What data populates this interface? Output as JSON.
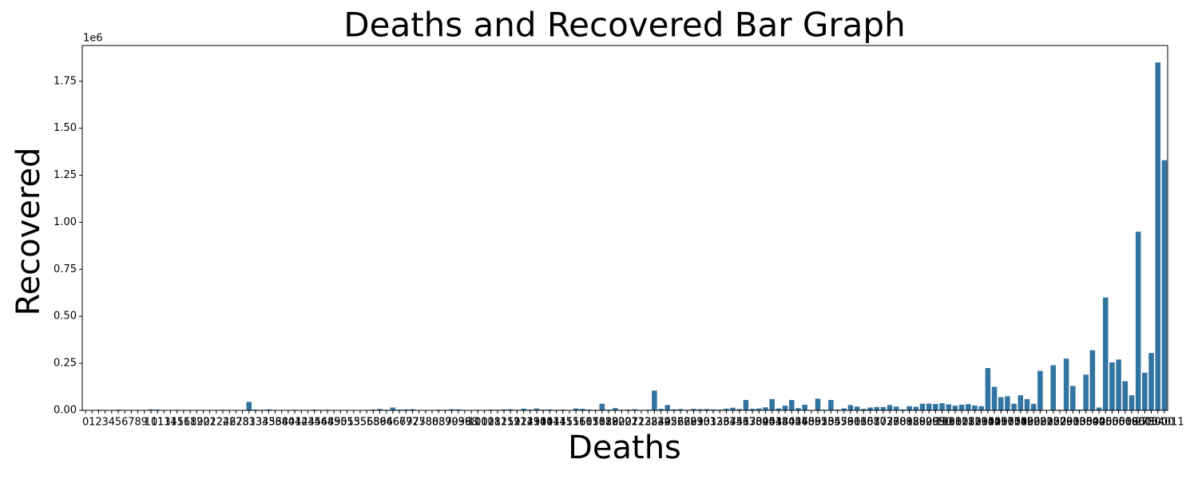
{
  "chart_data": {
    "type": "bar",
    "title": "Deaths and Recovered Bar Graph",
    "x_label": "Deaths",
    "y_label": "Recovered",
    "y_offset_label": "1e6",
    "color": "#3274a1",
    "categories": [
      0,
      1,
      2,
      3,
      4,
      5,
      6,
      7,
      8,
      9,
      10,
      11,
      13,
      14,
      15,
      16,
      18,
      19,
      20,
      21,
      22,
      24,
      26,
      27,
      28,
      31,
      33,
      34,
      35,
      36,
      38,
      40,
      41,
      42,
      43,
      45,
      46,
      48,
      49,
      50,
      51,
      53,
      55,
      56,
      58,
      59,
      64,
      66,
      67,
      69,
      72,
      75,
      78,
      80,
      83,
      87,
      90,
      93,
      96,
      98,
      100,
      102,
      108,
      112,
      115,
      119,
      121,
      124,
      129,
      130,
      140,
      141,
      144,
      145,
      151,
      156,
      160,
      165,
      170,
      182,
      188,
      192,
      200,
      207,
      211,
      223,
      228,
      234,
      239,
      245,
      256,
      262,
      269,
      281,
      290,
      301,
      313,
      326,
      337,
      344,
      351,
      363,
      370,
      382,
      395,
      403,
      418,
      430,
      442,
      456,
      470,
      489,
      501,
      520,
      534,
      555,
      573,
      590,
      611,
      630,
      651,
      680,
      702,
      733,
      760,
      789,
      812,
      850,
      880,
      920,
      955,
      990,
      1030,
      1080,
      1125,
      1180,
      1230,
      1290,
      1350,
      1420,
      1490,
      1570,
      1650,
      1740,
      1850,
      1960,
      2080,
      2210,
      2350,
      2520,
      2700,
      2900,
      3100,
      3350,
      3600,
      3900,
      4250,
      4600,
      5000,
      5500,
      6100,
      6800,
      9600,
      27500,
      73000,
      154011
    ],
    "values": [
      0,
      0.001,
      0.003,
      0.001,
      0.002,
      0.004,
      0.001,
      0.002,
      0.001,
      0.001,
      0.005,
      0.004,
      0.001,
      0.002,
      0.003,
      0.001,
      0.002,
      0.001,
      0.001,
      0.002,
      0.001,
      0.003,
      0.002,
      0.001,
      0.002,
      0.045,
      0.004,
      0.003,
      0.005,
      0.002,
      0.002,
      0.001,
      0.003,
      0.002,
      0.001,
      0.004,
      0.002,
      0.003,
      0.001,
      0.002,
      0.001,
      0.002,
      0.001,
      0.002,
      0.004,
      0.007,
      0.003,
      0.015,
      0.004,
      0.005,
      0.006,
      0.002,
      0.001,
      0.002,
      0.004,
      0.003,
      0.006,
      0.005,
      0.002,
      0.001,
      0.003,
      0.002,
      0.004,
      0.003,
      0.005,
      0.006,
      0.003,
      0.009,
      0.004,
      0.01,
      0.004,
      0.005,
      0.003,
      0.004,
      0.002,
      0.01,
      0.008,
      0.004,
      0.003,
      0.035,
      0.004,
      0.012,
      0.003,
      0.004,
      0.006,
      0.002,
      0.003,
      0.105,
      0.008,
      0.028,
      0.005,
      0.007,
      0.003,
      0.008,
      0.006,
      0.007,
      0.005,
      0.004,
      0.009,
      0.014,
      0.007,
      0.055,
      0.008,
      0.01,
      0.016,
      0.06,
      0.01,
      0.025,
      0.055,
      0.012,
      0.03,
      0.002,
      0.062,
      0.003,
      0.055,
      0.004,
      0.01,
      0.028,
      0.02,
      0.008,
      0.015,
      0.018,
      0.017,
      0.028,
      0.02,
      0.005,
      0.022,
      0.019,
      0.035,
      0.036,
      0.034,
      0.038,
      0.032,
      0.025,
      0.03,
      0.033,
      0.026,
      0.022,
      0.225,
      0.125,
      0.07,
      0.075,
      0.035,
      0.08,
      0.06,
      0.035,
      0.21,
      0.002,
      0.24,
      0.003,
      0.275,
      0.13,
      0.004,
      0.19,
      0.32,
      0.015,
      0.6,
      0.255,
      0.27,
      0.155,
      0.08,
      0.95,
      0.2,
      0.305,
      1.85,
      1.33
    ],
    "ylim": [
      0,
      1.94
    ],
    "yticks": [
      {
        "value": 0,
        "label": "0.00"
      },
      {
        "value": 0.25,
        "label": "0.25"
      },
      {
        "value": 0.5,
        "label": "0.50"
      },
      {
        "value": 0.75,
        "label": "0.75"
      },
      {
        "value": 1,
        "label": "1.00"
      },
      {
        "value": 1.25,
        "label": "1.25"
      },
      {
        "value": 1.5,
        "label": "1.50"
      },
      {
        "value": 1.75,
        "label": "1.75"
      }
    ]
  }
}
